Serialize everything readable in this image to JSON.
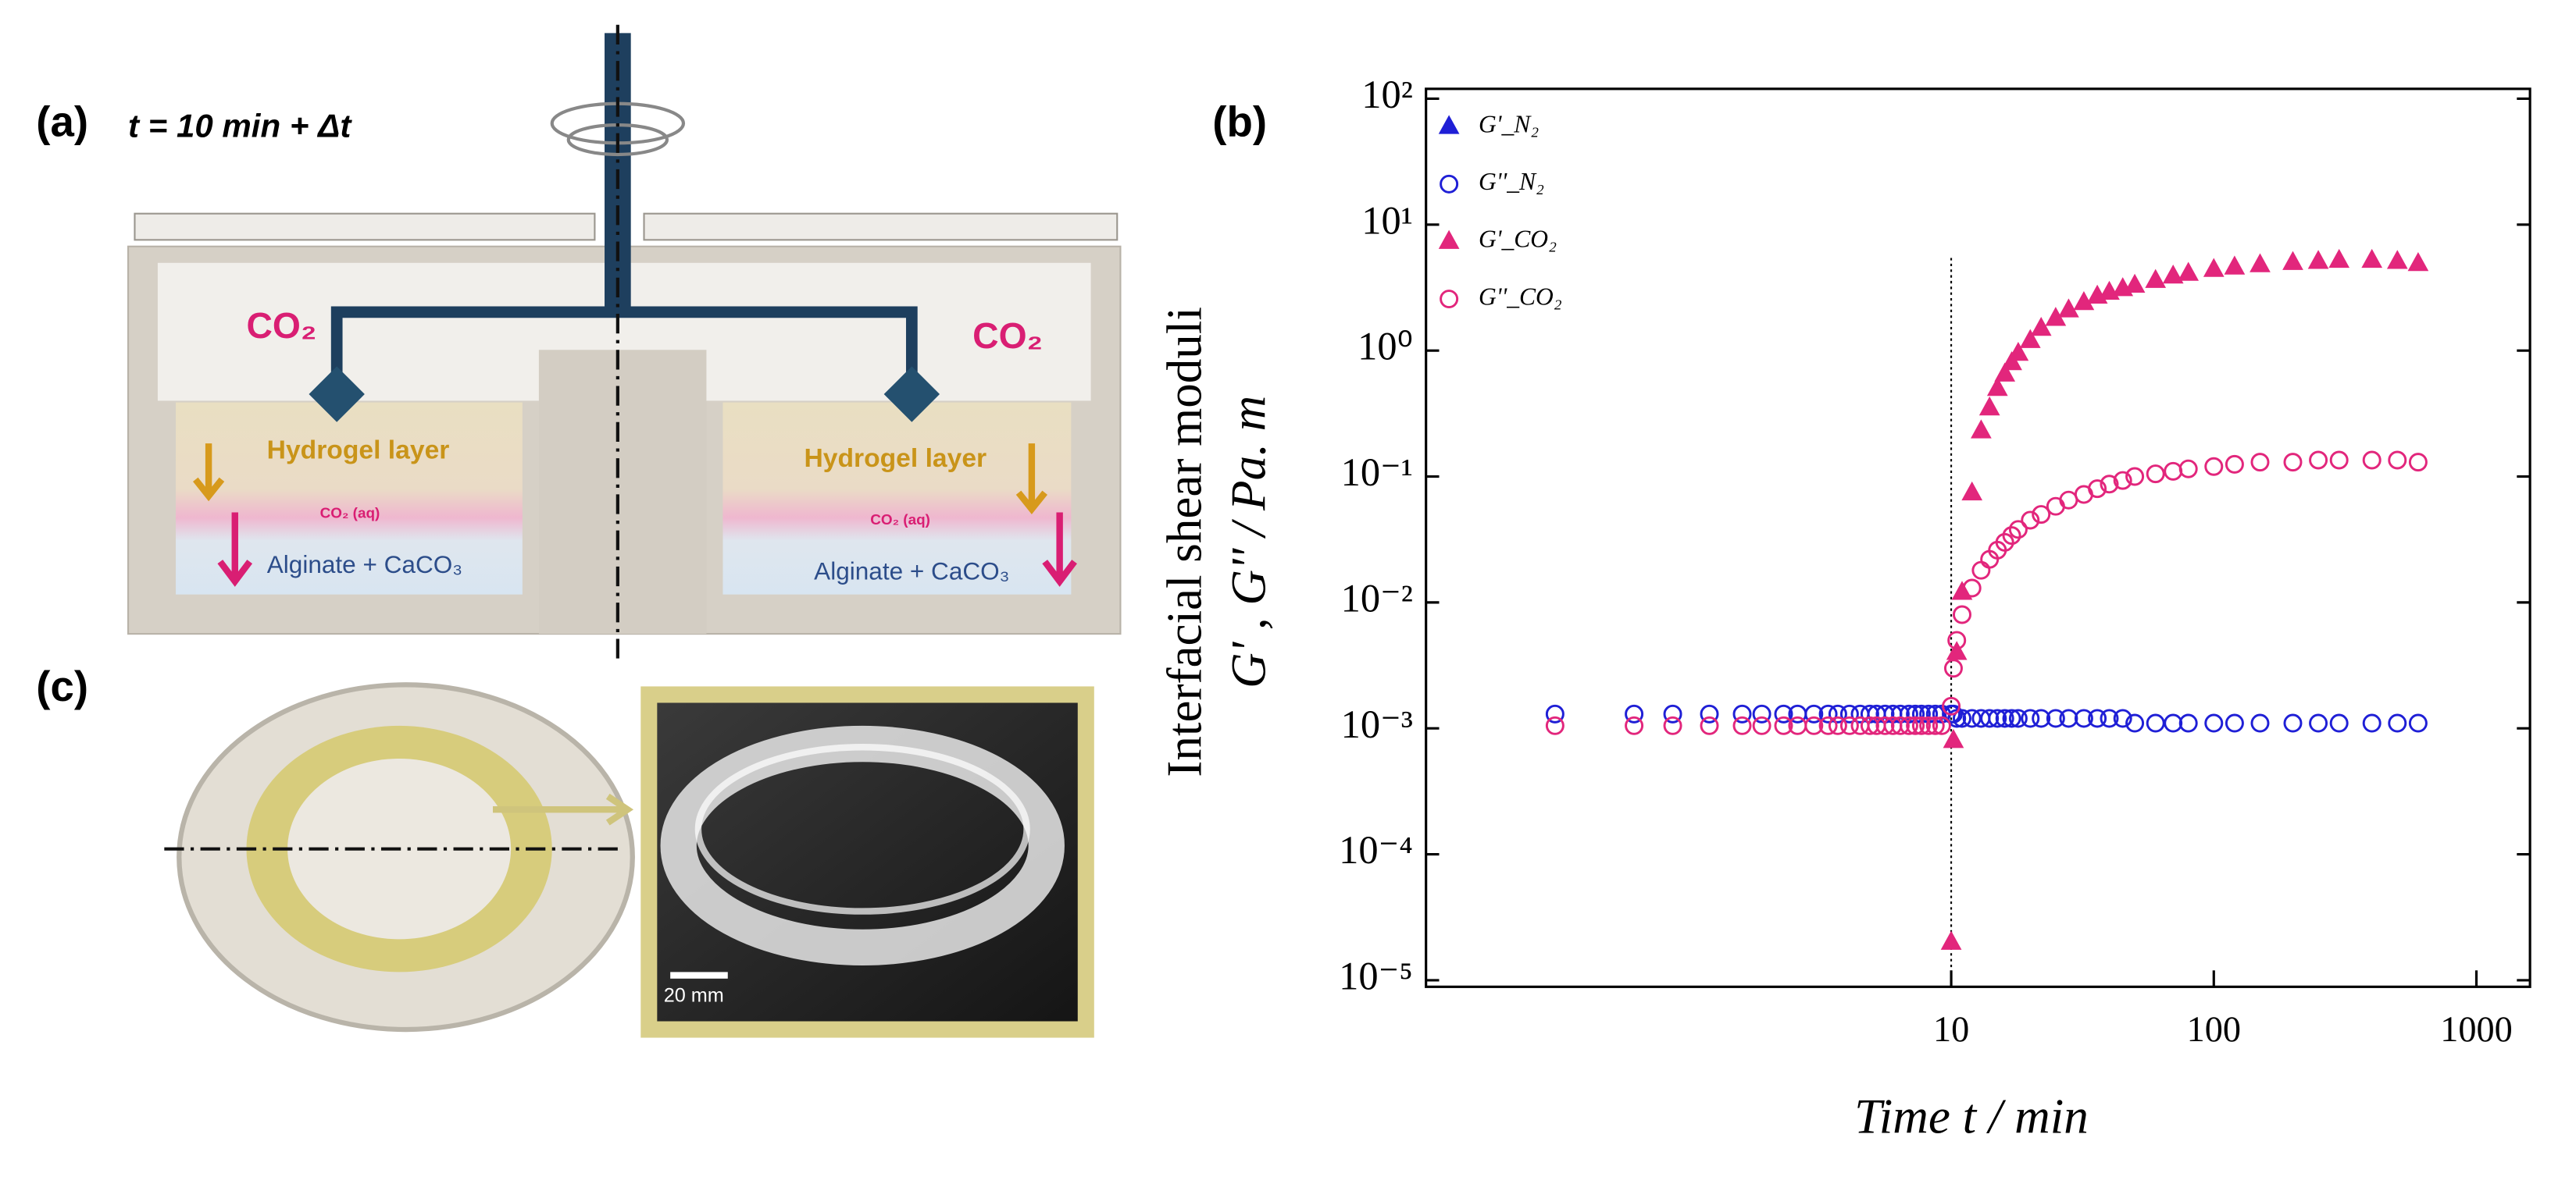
{
  "panel_a": {
    "label": "(a)",
    "time_text": "t = 10 min + Δt",
    "gas_left": "CO₂",
    "gas_right": "CO₂",
    "layer_left": "Hydrogel layer",
    "layer_right": "Hydrogel layer",
    "aq_left": "CO₂ (aq)",
    "aq_right": "CO₂ (aq)",
    "solution_left": "Alginate + CaCO₃",
    "solution_right": "Alginate + CaCO₃"
  },
  "panel_c": {
    "label": "(c)",
    "scale_bar": "20 mm"
  },
  "chart_data": {
    "type": "scatter",
    "panel_label": "(b)",
    "xlabel": "Time t / min",
    "ylabel": "Interfacial shear moduli",
    "ylabel_2": "G' , G'' / Pa. m",
    "xlog": true,
    "ylog": true,
    "xlim": [
      0.1,
      1600
    ],
    "ylim": [
      1e-05,
      100
    ],
    "xticks": [
      10,
      100,
      1000
    ],
    "yticks": [
      {
        "value": 1e-05,
        "label": "10⁻⁵"
      },
      {
        "value": 0.0001,
        "label": "10⁻⁴"
      },
      {
        "value": 0.001,
        "label": "10⁻³"
      },
      {
        "value": 0.01,
        "label": "10⁻²"
      },
      {
        "value": 0.1,
        "label": "10⁻¹"
      },
      {
        "value": 1,
        "label": "10⁰"
      },
      {
        "value": 10,
        "label": "10¹"
      },
      {
        "value": 100,
        "label": "10²"
      }
    ],
    "reference_line_x": 10,
    "legend": "upper left",
    "x": [
      0.31,
      0.62,
      0.87,
      1.2,
      1.6,
      1.9,
      2.3,
      2.6,
      3,
      3.4,
      3.7,
      4.1,
      4.5,
      4.9,
      5.2,
      5.6,
      6,
      6.4,
      6.9,
      7.3,
      7.7,
      8.2,
      8.7,
      9.2,
      10,
      10.2,
      10.5,
      11,
      12,
      13,
      14,
      15,
      16,
      17,
      18,
      20,
      22,
      25,
      28,
      32,
      36,
      40,
      45,
      50,
      60,
      70,
      80,
      100,
      120,
      150,
      200,
      250,
      300,
      400,
      500,
      600
    ],
    "series": [
      {
        "name": "G'_N₂",
        "color": "#1f1fd6",
        "marker": "triangle",
        "filled": true,
        "values": [
          null,
          null,
          null,
          null,
          null,
          null,
          null,
          null,
          null,
          null,
          null,
          null,
          null,
          null,
          null,
          null,
          null,
          null,
          null,
          null,
          null,
          null,
          null,
          null,
          null,
          null,
          null,
          null,
          null,
          null,
          null,
          null,
          null,
          null,
          null,
          null,
          null,
          null,
          null,
          null,
          null,
          null,
          null,
          null,
          null,
          null,
          null,
          null,
          null,
          null,
          null,
          null,
          null,
          null,
          null,
          null
        ]
      },
      {
        "name": "G''_N₂",
        "color": "#1f1fd6",
        "marker": "circle",
        "filled": false,
        "values": [
          0.0013,
          0.0013,
          0.0013,
          0.0013,
          0.0013,
          0.0013,
          0.0013,
          0.0013,
          0.0013,
          0.0013,
          0.0013,
          0.0013,
          0.0013,
          0.0013,
          0.0013,
          0.0013,
          0.0013,
          0.0013,
          0.0013,
          0.0013,
          0.0013,
          0.0013,
          0.0013,
          0.0013,
          0.0013,
          0.0013,
          0.0012,
          0.0012,
          0.0012,
          0.0012,
          0.0012,
          0.0012,
          0.0012,
          0.0012,
          0.0012,
          0.0012,
          0.0012,
          0.0012,
          0.0012,
          0.0012,
          0.0012,
          0.0012,
          0.0012,
          0.0011,
          0.0011,
          0.0011,
          0.0011,
          0.0011,
          0.0011,
          0.0011,
          0.0011,
          0.0011,
          0.0011,
          0.0011,
          0.0011,
          0.0011
        ]
      },
      {
        "name": "G'_CO₂",
        "color": "#e2267c",
        "marker": "triangle",
        "filled": true,
        "values": [
          null,
          null,
          null,
          null,
          null,
          null,
          null,
          null,
          null,
          null,
          null,
          null,
          null,
          null,
          null,
          null,
          null,
          null,
          null,
          null,
          null,
          null,
          null,
          null,
          2e-05,
          0.0008,
          0.004,
          0.012,
          0.074,
          0.23,
          0.35,
          0.5,
          0.65,
          0.8,
          0.95,
          1.2,
          1.5,
          1.8,
          2.1,
          2.4,
          2.7,
          2.9,
          3.1,
          3.3,
          3.6,
          3.9,
          4.1,
          4.4,
          4.6,
          4.8,
          5.0,
          5.1,
          5.2,
          5.2,
          5.1,
          4.9
        ]
      },
      {
        "name": "G''_CO₂",
        "color": "#e2267c",
        "marker": "circle",
        "filled": false,
        "values": [
          0.00105,
          0.00105,
          0.00105,
          0.00105,
          0.00105,
          0.00105,
          0.00105,
          0.00105,
          0.00105,
          0.00105,
          0.00105,
          0.00105,
          0.00105,
          0.00105,
          0.00105,
          0.00105,
          0.00105,
          0.00105,
          0.00105,
          0.00105,
          0.00105,
          0.00105,
          0.00105,
          0.00105,
          0.0015,
          0.003,
          0.005,
          0.008,
          0.013,
          0.018,
          0.022,
          0.026,
          0.03,
          0.034,
          0.038,
          0.045,
          0.05,
          0.058,
          0.065,
          0.072,
          0.08,
          0.087,
          0.093,
          0.1,
          0.105,
          0.11,
          0.115,
          0.12,
          0.125,
          0.13,
          0.13,
          0.135,
          0.135,
          0.135,
          0.135,
          0.13
        ]
      }
    ]
  }
}
